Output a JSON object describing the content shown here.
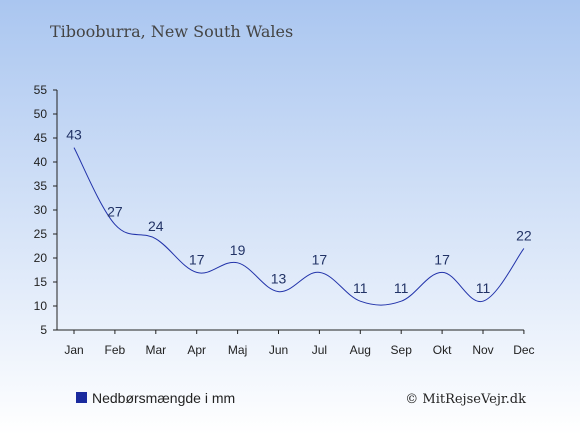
{
  "colors": {
    "background_top": "#aac6f0",
    "background_bottom": "#ffffff",
    "line": "#2233aa",
    "label": "#223366",
    "axis": "#222222",
    "legend_swatch": "#1a2a9e"
  },
  "chart_data": {
    "type": "line",
    "title": "Tibooburra, New South Wales",
    "categories": [
      "Jan",
      "Feb",
      "Mar",
      "Apr",
      "Maj",
      "Jun",
      "Jul",
      "Aug",
      "Sep",
      "Okt",
      "Nov",
      "Dec"
    ],
    "series": [
      {
        "name": "Nedbørsmængde i mm",
        "values": [
          43,
          27,
          24,
          17,
          19,
          13,
          17,
          11,
          11,
          17,
          11,
          22
        ]
      }
    ],
    "ylim": [
      5,
      55
    ],
    "yticks": [
      5,
      10,
      15,
      20,
      25,
      30,
      35,
      40,
      45,
      50,
      55
    ],
    "grid": false,
    "legend_placement": "bottom-left"
  },
  "legend": {
    "label": "Nedbørsmængde i mm"
  },
  "copyright": "© MitRejseVejr.dk"
}
